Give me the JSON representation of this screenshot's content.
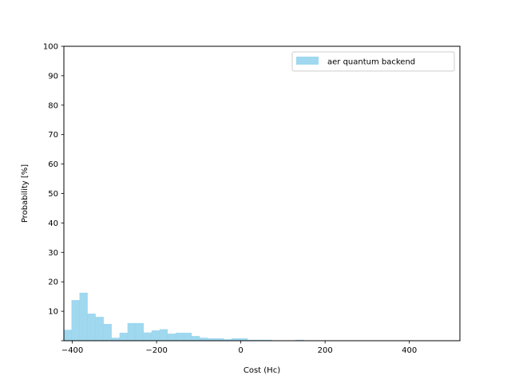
{
  "chart_data": {
    "type": "bar",
    "xlabel": "Cost (Hc)",
    "ylabel": "Probability [%]",
    "xlim": [
      -420,
      520
    ],
    "ylim": [
      0,
      100
    ],
    "xticks": [
      -400,
      -200,
      0,
      200,
      400
    ],
    "xtick_labels": [
      "−400",
      "−200",
      "0",
      "200",
      "400"
    ],
    "yticks": [
      0,
      10,
      20,
      30,
      40,
      50,
      60,
      70,
      80,
      90,
      100
    ],
    "ytick_labels": [
      "",
      "10",
      "20",
      "30",
      "40",
      "50",
      "60",
      "70",
      "80",
      "90",
      "100"
    ],
    "legend_position": "top-right",
    "grid": false,
    "series": [
      {
        "name": "aer quantum backend",
        "color": "#87ceeb",
        "bin_edges": [
          -420,
          -402,
          -383,
          -364,
          -345,
          -326,
          -307,
          -288,
          -269,
          -250,
          -231,
          -212,
          -193,
          -174,
          -155,
          -136,
          -117,
          -98,
          -79,
          -60,
          -41,
          -22,
          -3,
          16,
          35,
          54,
          73,
          92,
          111,
          130,
          149
        ],
        "values": [
          3.7,
          13.8,
          16.3,
          9.2,
          8.1,
          5.7,
          1.0,
          2.7,
          6.0,
          6.0,
          2.8,
          3.5,
          3.9,
          2.4,
          2.7,
          2.7,
          1.6,
          1.0,
          0.8,
          0.8,
          0.5,
          0.8,
          0.8,
          0.3,
          0.3,
          0.3,
          0.0,
          0.0,
          0.0,
          0.3
        ]
      }
    ]
  }
}
